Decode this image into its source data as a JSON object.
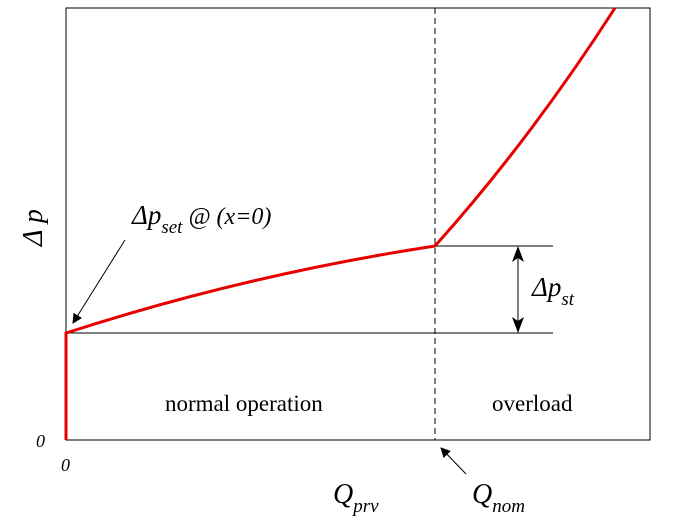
{
  "diagram": {
    "y_axis_label": "Δ p",
    "x_axis_label_main": "Q",
    "x_axis_label_sub": "prv",
    "origin_y_label": "0",
    "origin_x_label": "0",
    "set_point_label": {
      "main": "Δp",
      "sub": "set",
      "suffix": " @ (x=0)"
    },
    "step_label": {
      "main": "Δp",
      "sub": "st"
    },
    "nominal_label": {
      "main": "Q",
      "sub": "nom"
    },
    "region_normal": "normal operation",
    "region_overload": "overload",
    "colors": {
      "curve": "#e60000",
      "lines": "#000000",
      "background": "#ffffff"
    }
  }
}
